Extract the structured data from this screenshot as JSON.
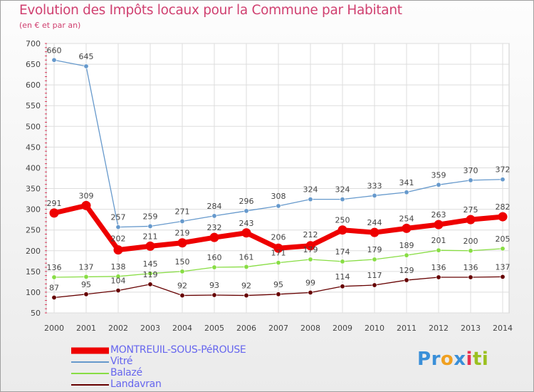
{
  "header": {
    "title": "Evolution des Impôts locaux pour la Commune par Habitant",
    "subtitle": "(en € et par an)"
  },
  "colors": {
    "title": "#d04070",
    "legend_text": "#6666ee",
    "grid": "#dddddd",
    "axis_ticks": "#dd3355"
  },
  "logo": {
    "letters": [
      {
        "char": "P",
        "color": "#3a8fd8"
      },
      {
        "char": "r",
        "color": "#3a8fd8"
      },
      {
        "char": "o",
        "color": "#f0a020"
      },
      {
        "char": "x",
        "color": "#3a8fd8"
      },
      {
        "char": "i",
        "color": "#e83050"
      },
      {
        "char": "t",
        "color": "#9bc020"
      },
      {
        "char": "i",
        "color": "#9bc020"
      }
    ]
  },
  "chart_data": {
    "type": "line",
    "title": "Evolution des Impôts locaux pour la Commune par Habitant",
    "subtitle": "(en € et par an)",
    "xlabel": "",
    "ylabel": "",
    "categories": [
      "2000",
      "2001",
      "2002",
      "2003",
      "2004",
      "2005",
      "2006",
      "2007",
      "2008",
      "2009",
      "2010",
      "2011",
      "2012",
      "2013",
      "2014"
    ],
    "ylim": [
      50,
      700
    ],
    "yticks": [
      50,
      100,
      150,
      200,
      250,
      300,
      350,
      400,
      450,
      500,
      550,
      600,
      650,
      700
    ],
    "grid": true,
    "legend_position": "bottom-left",
    "series": [
      {
        "name": "MONTREUIL-SOUS-PéROUSE",
        "color": "#ee0000",
        "emphasis": true,
        "values": [
          291,
          309,
          202,
          211,
          219,
          232,
          243,
          206,
          212,
          250,
          244,
          254,
          263,
          275,
          282
        ]
      },
      {
        "name": "Vitré",
        "color": "#6699cc",
        "emphasis": false,
        "values": [
          660,
          645,
          257,
          259,
          271,
          284,
          296,
          308,
          324,
          324,
          333,
          341,
          359,
          370,
          372
        ]
      },
      {
        "name": "Balazé",
        "color": "#88dd44",
        "emphasis": false,
        "values": [
          136,
          137,
          138,
          145,
          150,
          160,
          161,
          171,
          179,
          174,
          179,
          189,
          201,
          200,
          205
        ]
      },
      {
        "name": "Landavran",
        "color": "#660000",
        "emphasis": false,
        "values": [
          87,
          95,
          104,
          119,
          92,
          93,
          92,
          95,
          99,
          114,
          117,
          129,
          136,
          136,
          137
        ]
      }
    ]
  }
}
